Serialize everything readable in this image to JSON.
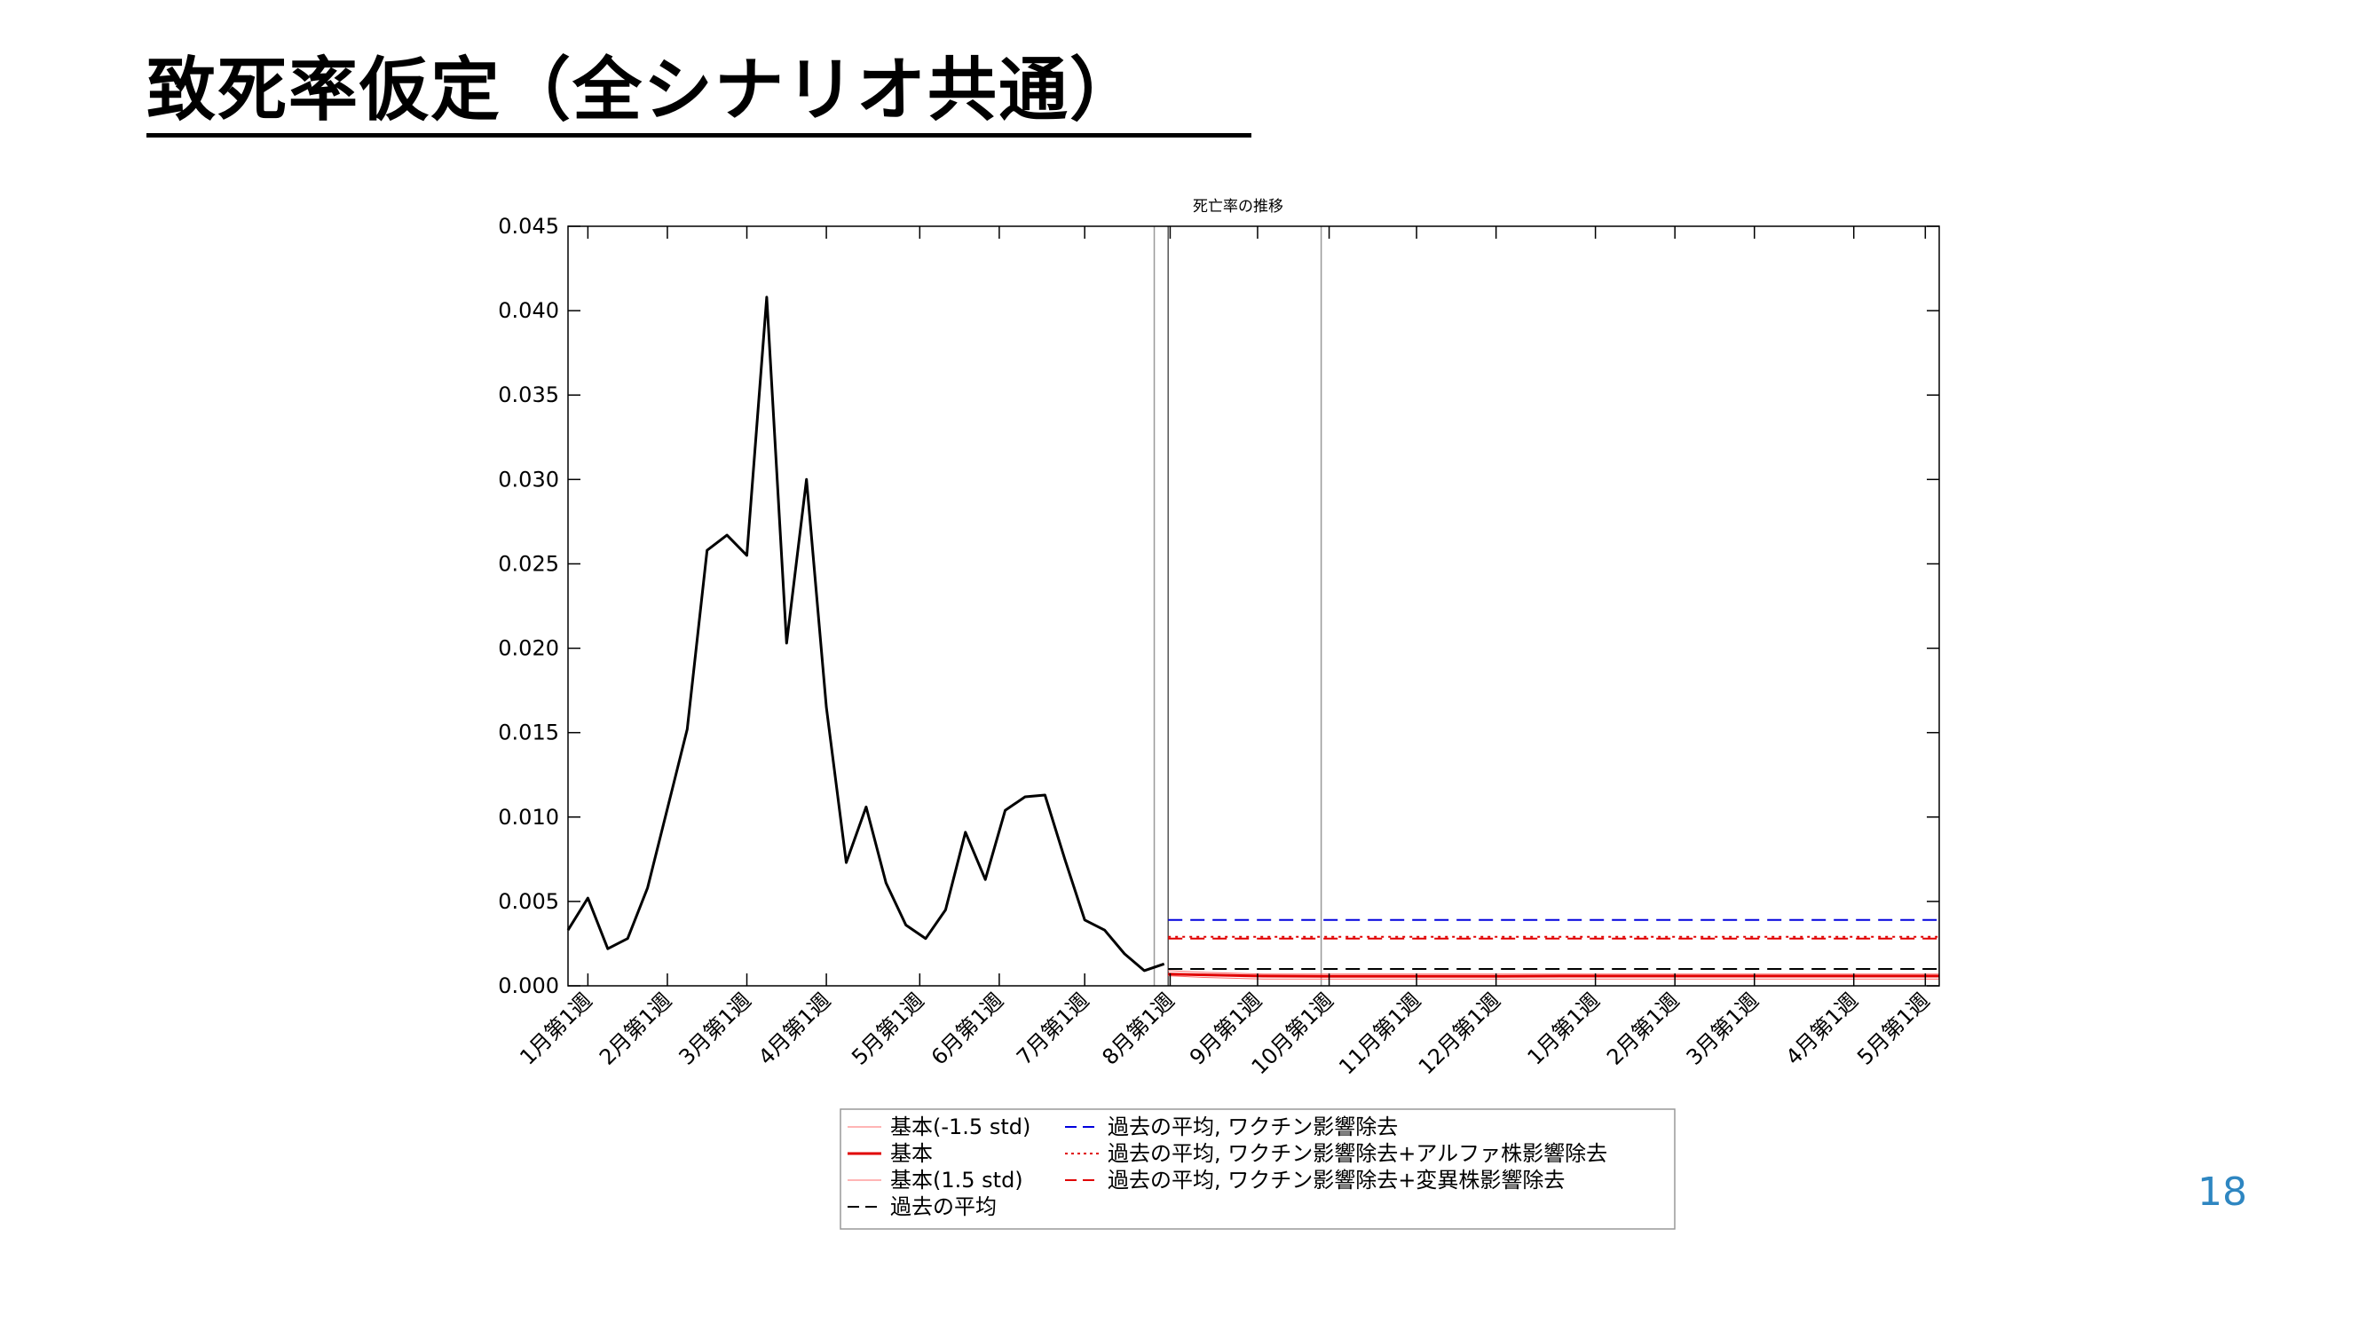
{
  "slide": {
    "title": "致死率仮定（全シナリオ共通）",
    "page_number": "18"
  },
  "chart_data": {
    "type": "line",
    "title": "死亡率の推移",
    "xlabel": "",
    "ylabel": "",
    "ylim": [
      0,
      0.045
    ],
    "yticks": [
      "0.000",
      "0.005",
      "0.010",
      "0.015",
      "0.020",
      "0.025",
      "0.030",
      "0.035",
      "0.040",
      "0.045"
    ],
    "xlim": [
      0,
      69
    ],
    "xtick_labels": [
      {
        "x": 1,
        "label": "1月第1週"
      },
      {
        "x": 5,
        "label": "2月第1週"
      },
      {
        "x": 9,
        "label": "3月第1週"
      },
      {
        "x": 13,
        "label": "4月第1週"
      },
      {
        "x": 17.7,
        "label": "5月第1週"
      },
      {
        "x": 21.7,
        "label": "6月第1週"
      },
      {
        "x": 26,
        "label": "7月第1週"
      },
      {
        "x": 30.3,
        "label": "8月第1週"
      },
      {
        "x": 34.7,
        "label": "9月第1週"
      },
      {
        "x": 38.3,
        "label": "10月第1週"
      },
      {
        "x": 42.7,
        "label": "11月第1週"
      },
      {
        "x": 46.7,
        "label": "12月第1週"
      },
      {
        "x": 51.7,
        "label": "1月第1週"
      },
      {
        "x": 55.7,
        "label": "2月第1週"
      },
      {
        "x": 59.7,
        "label": "3月第1週"
      },
      {
        "x": 64.7,
        "label": "4月第1週"
      },
      {
        "x": 68.3,
        "label": "5月第1週"
      }
    ],
    "vertical_lines": [
      29.5,
      30.2,
      37.9
    ],
    "series": [
      {
        "name": "基本(-1.5 std)",
        "color": "#ff6b6b",
        "style": "solid",
        "width": 1,
        "x": [
          30.2,
          32,
          35,
          38,
          41,
          44,
          47,
          50,
          53,
          56,
          59,
          62,
          65,
          69
        ],
        "y": [
          0.0006,
          0.0005,
          0.0004,
          0.0004,
          0.0004,
          0.0004,
          0.0004,
          0.0004,
          0.0004,
          0.0004,
          0.0004,
          0.0004,
          0.0004,
          0.0004
        ]
      },
      {
        "name": "基本",
        "color": "#e00000",
        "style": "solid",
        "width": 3,
        "x": [
          30.2,
          32,
          35,
          38,
          41,
          44,
          47,
          50,
          53,
          56,
          59,
          62,
          65,
          69
        ],
        "y": [
          0.0007,
          0.00065,
          0.00058,
          0.00056,
          0.00056,
          0.00056,
          0.00057,
          0.00058,
          0.00058,
          0.00058,
          0.00058,
          0.00058,
          0.00058,
          0.00058
        ]
      },
      {
        "name": "基本(1.5 std)",
        "color": "#ff6b6b",
        "style": "solid",
        "width": 1,
        "x": [
          30.2,
          32,
          35,
          38,
          41,
          44,
          47,
          50,
          53,
          56,
          59,
          62,
          65,
          69
        ],
        "y": [
          0.0009,
          0.0008,
          0.0007,
          0.0007,
          0.0007,
          0.0007,
          0.0007,
          0.0007,
          0.0007,
          0.0007,
          0.0007,
          0.0007,
          0.0007,
          0.0007
        ]
      },
      {
        "name": "過去の平均",
        "color": "#000000",
        "style": "dashed",
        "width": 2,
        "x": [
          30.2,
          69
        ],
        "y": [
          0.001,
          0.001
        ]
      },
      {
        "name": "過去の平均, ワクチン影響除去",
        "color": "#0000dd",
        "style": "dashed",
        "width": 2,
        "x": [
          30.2,
          69
        ],
        "y": [
          0.0039,
          0.0039
        ]
      },
      {
        "name": "過去の平均, ワクチン影響除去+アルファ株影響除去",
        "color": "#e00000",
        "style": "dotted",
        "width": 2,
        "x": [
          30.2,
          69
        ],
        "y": [
          0.0029,
          0.0029
        ]
      },
      {
        "name": "過去の平均, ワクチン影響除去+変異株影響除去",
        "color": "#e00000",
        "style": "dashed",
        "width": 2,
        "x": [
          30.2,
          69
        ],
        "y": [
          0.0028,
          0.0028
        ]
      },
      {
        "name": "",
        "color": "#000000",
        "style": "solid",
        "width": 3,
        "x": [
          0,
          1,
          2,
          3,
          4,
          5,
          6,
          7,
          8,
          9,
          10,
          11,
          12,
          13,
          14,
          15,
          16,
          17,
          18,
          19,
          20,
          21,
          22,
          23,
          24,
          25,
          26,
          27,
          28,
          29,
          30
        ],
        "y": [
          0.0033,
          0.0052,
          0.0022,
          0.0028,
          0.0058,
          0.0105,
          0.0152,
          0.0258,
          0.0267,
          0.0255,
          0.0408,
          0.0203,
          0.03,
          0.0165,
          0.0073,
          0.0106,
          0.0061,
          0.0036,
          0.0028,
          0.0045,
          0.0091,
          0.0063,
          0.0104,
          0.0112,
          0.0113,
          0.0075,
          0.0039,
          0.0033,
          0.0019,
          0.0009,
          0.0013
        ]
      }
    ],
    "legend": {
      "placement": "bottom-center",
      "columns": [
        [
          "基本(-1.5 std)",
          "基本",
          "基本(1.5 std)",
          "過去の平均"
        ],
        [
          "過去の平均, ワクチン影響除去",
          "過去の平均, ワクチン影響除去+アルファ株影響除去",
          "過去の平均, ワクチン影響除去+変異株影響除去"
        ]
      ]
    }
  }
}
